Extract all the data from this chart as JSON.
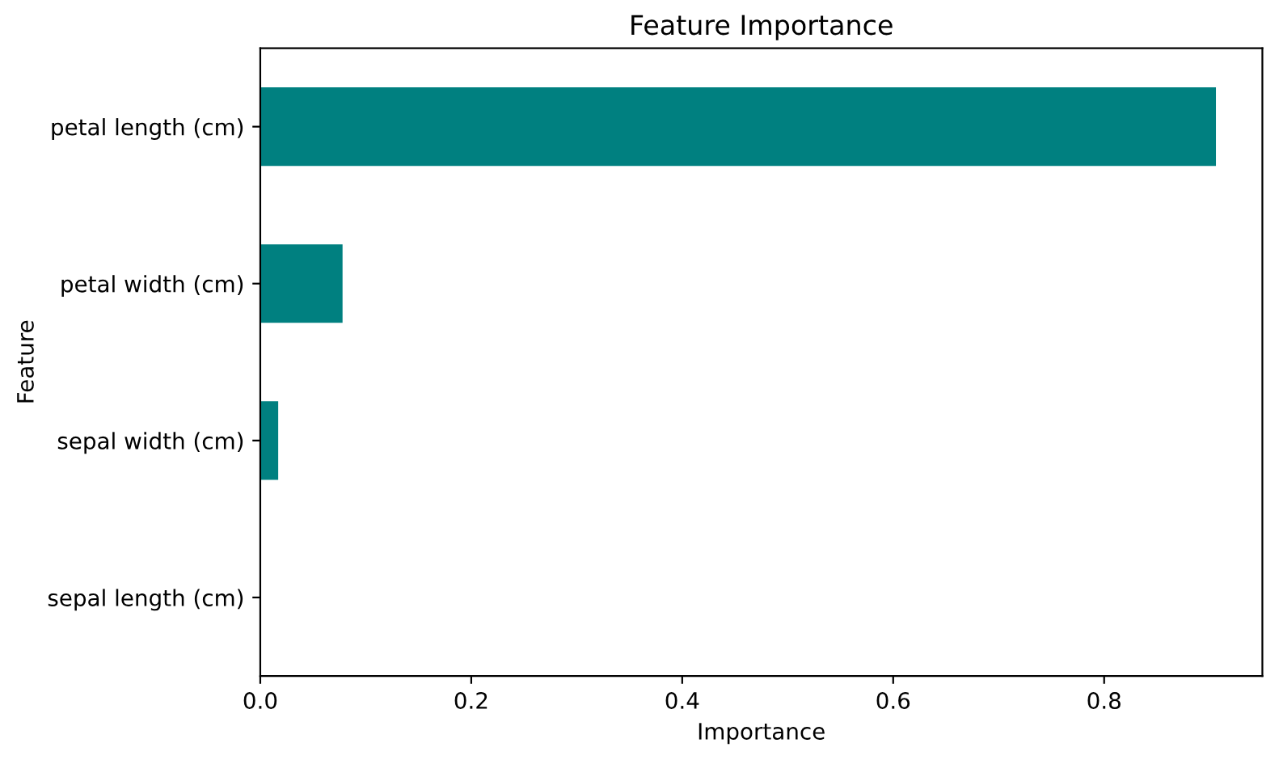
{
  "chart_data": {
    "type": "bar",
    "orientation": "horizontal",
    "title": "Feature Importance",
    "xlabel": "Importance",
    "ylabel": "Feature",
    "categories": [
      "petal length (cm)",
      "petal width (cm)",
      "sepal width (cm)",
      "sepal length (cm)"
    ],
    "values": [
      0.906,
      0.078,
      0.017,
      0
    ],
    "color": "#008080",
    "xlim": [
      0,
      0.95
    ],
    "xticks": [
      {
        "value": 0,
        "label": "0.0"
      },
      0.2,
      0.4,
      0.6,
      0.8
    ],
    "grid": false,
    "legend": false
  }
}
